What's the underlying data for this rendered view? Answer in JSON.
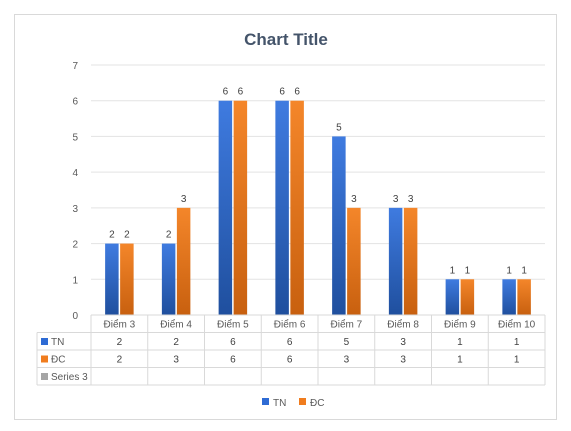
{
  "chart_data": {
    "type": "bar",
    "title": "Chart Title",
    "categories": [
      "Điểm 3",
      "Điểm 4",
      "Điểm 5",
      "Điểm 6",
      "Điểm 7",
      "Điểm 8",
      "Điểm 9",
      "Điểm 10"
    ],
    "series": [
      {
        "name": "TN",
        "values": [
          2,
          2,
          6,
          6,
          5,
          3,
          1,
          1
        ],
        "color": "#2e6bd4"
      },
      {
        "name": "ĐC",
        "values": [
          2,
          3,
          6,
          6,
          3,
          3,
          1,
          1
        ],
        "color": "#f07c1e"
      }
    ],
    "table_rows": [
      {
        "name": "TN",
        "color": "#2e6bd4",
        "values": [
          "2",
          "2",
          "6",
          "6",
          "5",
          "3",
          "1",
          "1"
        ]
      },
      {
        "name": "ĐC",
        "color": "#f07c1e",
        "values": [
          "2",
          "3",
          "6",
          "6",
          "3",
          "3",
          "1",
          "1"
        ]
      },
      {
        "name": "Series 3",
        "color": "#a5a5a5",
        "values": [
          "",
          "",
          "",
          "",
          "",
          "",
          "",
          ""
        ]
      }
    ],
    "y_ticks": [
      "0",
      "1",
      "2",
      "3",
      "4",
      "5",
      "6",
      "7"
    ],
    "ylim": [
      0,
      7
    ],
    "grid": true,
    "legend": {
      "position": "bottom",
      "entries": [
        "TN",
        "ĐC"
      ]
    }
  }
}
